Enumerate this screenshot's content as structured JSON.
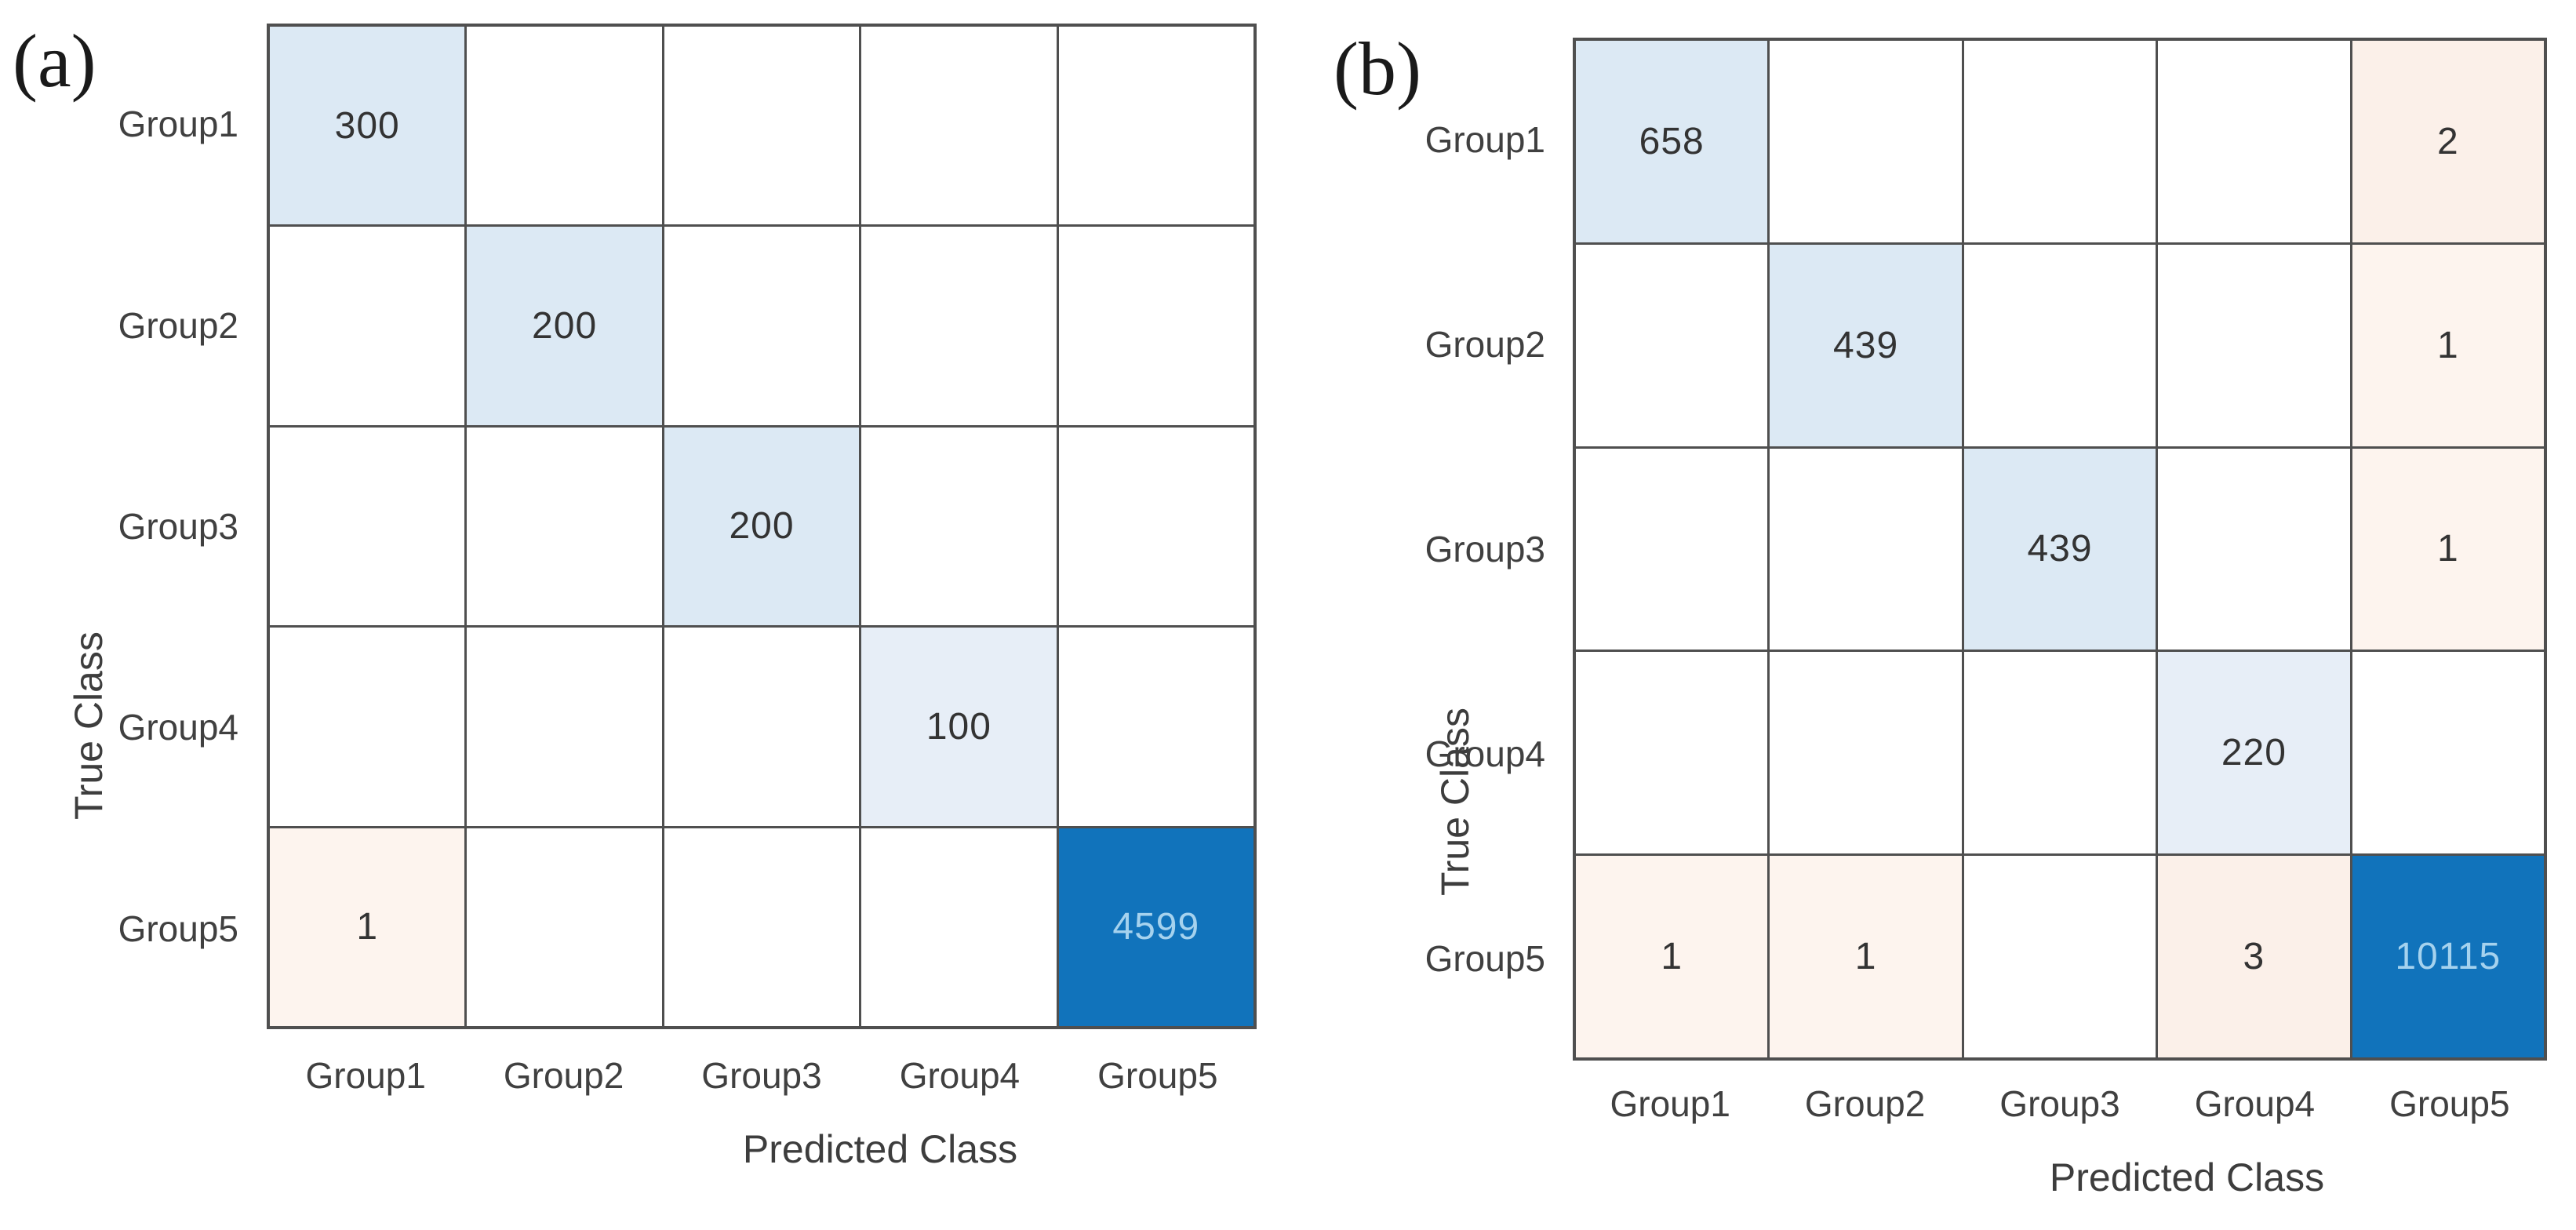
{
  "figure_type": "confusion-matrix-pair",
  "color_map": {
    "w": "#ffffff",
    "d": "#dce9f4",
    "l": "#e7eef7",
    "D": "#1173bb",
    "p": "#fdf4ee",
    "P": "#fbf0e9"
  },
  "colors": {
    "grid_line": "#4f4f4f",
    "diagonal_light_blue": "#dce9f4",
    "diagonal_lighter_blue": "#e7eef7",
    "diagonal_dark_blue": "#1173bb",
    "offdiagonal_pink_light": "#fdf4ee",
    "offdiagonal_pink": "#fbf0e9",
    "value_text": "#333333",
    "value_text_on_dark": "#a5d2ee",
    "label_text": "#404040"
  },
  "chart_data": [
    {
      "type": "heatmap",
      "subtype": "confusion-matrix",
      "title": "(a)",
      "xlabel": "Predicted Class",
      "ylabel": "True Class",
      "x_categories": [
        "Group1",
        "Group2",
        "Group3",
        "Group4",
        "Group5"
      ],
      "y_categories": [
        "Group1",
        "Group2",
        "Group3",
        "Group4",
        "Group5"
      ],
      "matrix": [
        [
          300,
          null,
          null,
          null,
          null
        ],
        [
          null,
          200,
          null,
          null,
          null
        ],
        [
          null,
          null,
          200,
          null,
          null
        ],
        [
          null,
          null,
          null,
          100,
          null
        ],
        [
          1,
          null,
          null,
          null,
          4599
        ]
      ],
      "cell_colors": [
        [
          "d",
          "w",
          "w",
          "w",
          "w"
        ],
        [
          "w",
          "d",
          "w",
          "w",
          "w"
        ],
        [
          "w",
          "w",
          "d",
          "w",
          "w"
        ],
        [
          "w",
          "w",
          "w",
          "l",
          "w"
        ],
        [
          "p",
          "w",
          "w",
          "w",
          "D"
        ]
      ]
    },
    {
      "type": "heatmap",
      "subtype": "confusion-matrix",
      "title": "(b)",
      "xlabel": "Predicted Class",
      "ylabel": "True Class",
      "x_categories": [
        "Group1",
        "Group2",
        "Group3",
        "Group4",
        "Group5"
      ],
      "y_categories": [
        "Group1",
        "Group2",
        "Group3",
        "Group4",
        "Group5"
      ],
      "matrix": [
        [
          658,
          null,
          null,
          null,
          2
        ],
        [
          null,
          439,
          null,
          null,
          1
        ],
        [
          null,
          null,
          439,
          null,
          1
        ],
        [
          null,
          null,
          null,
          220,
          null
        ],
        [
          1,
          1,
          null,
          3,
          10115
        ]
      ],
      "cell_colors": [
        [
          "d",
          "w",
          "w",
          "w",
          "P"
        ],
        [
          "w",
          "d",
          "w",
          "w",
          "p"
        ],
        [
          "w",
          "w",
          "d",
          "w",
          "p"
        ],
        [
          "w",
          "w",
          "w",
          "l",
          "w"
        ],
        [
          "p",
          "p",
          "w",
          "P",
          "D"
        ]
      ]
    }
  ]
}
